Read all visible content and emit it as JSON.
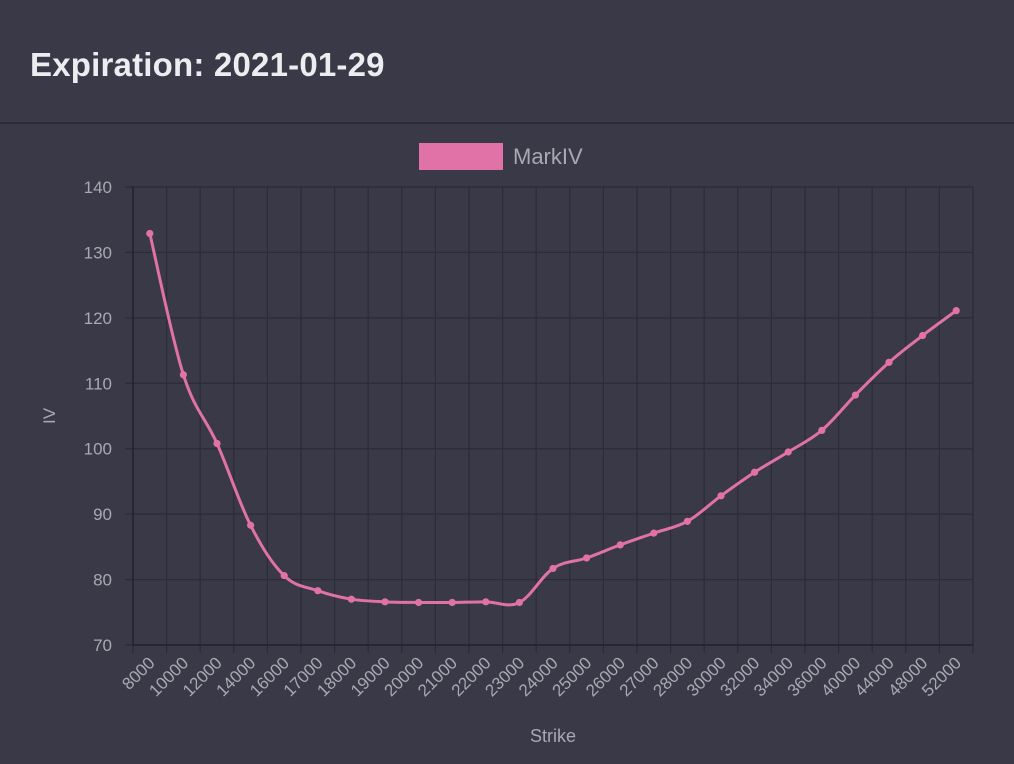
{
  "header": {
    "title": "Expiration: 2021-01-29"
  },
  "colors": {
    "series": "#e072a8",
    "grid": "#2c2c37",
    "text": "#a9a9b3",
    "background": "#393947"
  },
  "chart_data": {
    "type": "line",
    "title": "",
    "xlabel": "Strike",
    "ylabel": "IV",
    "ylim": [
      70,
      140
    ],
    "yticks": [
      70,
      80,
      90,
      100,
      110,
      120,
      130,
      140
    ],
    "grid": true,
    "legend_position": "top-center",
    "categories": [
      "8000",
      "10000",
      "12000",
      "14000",
      "16000",
      "17000",
      "18000",
      "19000",
      "20000",
      "21000",
      "22000",
      "23000",
      "24000",
      "25000",
      "26000",
      "27000",
      "28000",
      "30000",
      "32000",
      "34000",
      "36000",
      "40000",
      "44000",
      "48000",
      "52000"
    ],
    "series": [
      {
        "name": "MarkIV",
        "values": [
          132.9,
          111.3,
          100.8,
          88.3,
          80.6,
          78.3,
          77.0,
          76.6,
          76.5,
          76.5,
          76.6,
          76.5,
          81.7,
          83.3,
          85.3,
          87.1,
          88.9,
          92.8,
          96.4,
          99.5,
          102.8,
          108.2,
          113.2,
          117.3,
          121.1
        ]
      }
    ]
  }
}
